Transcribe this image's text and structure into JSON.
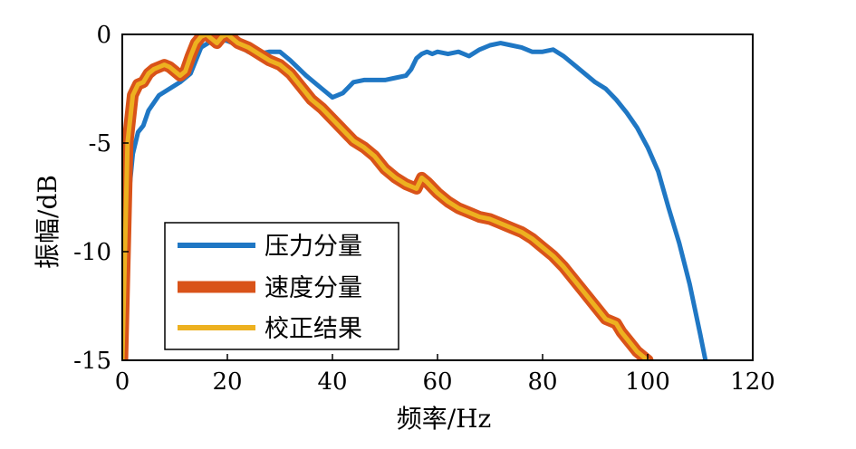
{
  "chart_data": {
    "type": "line",
    "title": "",
    "xlabel": "频率/Hz",
    "ylabel": "振幅/dB",
    "xlim": [
      0,
      120
    ],
    "ylim": [
      -15,
      0
    ],
    "xticks": [
      "0",
      "20",
      "40",
      "60",
      "80",
      "100",
      "120"
    ],
    "yticks": [
      "0",
      "-5",
      "-10",
      "-15"
    ],
    "grid": false,
    "legend_position": "lower-left",
    "series": [
      {
        "name": "压力分量",
        "color": "#1f77c4",
        "x": [
          0,
          1,
          2,
          3,
          4,
          5,
          7,
          9,
          11,
          13,
          15,
          17,
          18,
          20,
          22,
          24,
          26,
          28,
          30,
          32,
          35,
          38,
          40,
          42,
          44,
          46,
          48,
          50,
          52,
          54,
          55,
          56,
          57,
          58,
          59,
          60,
          62,
          64,
          66,
          68,
          70,
          72,
          74,
          76,
          78,
          80,
          82,
          84,
          86,
          88,
          90,
          92,
          94,
          96,
          98,
          100,
          102,
          104,
          106,
          108,
          110,
          111
        ],
        "y": [
          -15,
          -8,
          -5.5,
          -4.5,
          -4.2,
          -3.5,
          -2.8,
          -2.5,
          -2.2,
          -1.8,
          -0.6,
          -0.3,
          -0.2,
          -0.3,
          -0.5,
          -0.8,
          -0.9,
          -0.8,
          -0.8,
          -1.2,
          -1.9,
          -2.5,
          -2.9,
          -2.7,
          -2.2,
          -2.1,
          -2.1,
          -2.1,
          -2.0,
          -1.9,
          -1.6,
          -1.1,
          -0.9,
          -0.8,
          -0.9,
          -0.8,
          -0.9,
          -0.8,
          -1.0,
          -0.7,
          -0.5,
          -0.4,
          -0.5,
          -0.6,
          -0.8,
          -0.8,
          -0.7,
          -1.0,
          -1.4,
          -1.8,
          -2.2,
          -2.5,
          -3.0,
          -3.6,
          -4.3,
          -5.2,
          -6.3,
          -8.0,
          -9.6,
          -11.5,
          -13.8,
          -15
        ]
      },
      {
        "name": "速度分量",
        "color": "#d95319",
        "x": [
          0,
          1,
          2,
          3,
          4,
          5,
          6,
          7,
          8,
          9,
          10,
          11,
          12,
          13,
          14,
          15,
          16,
          17,
          18,
          19,
          20,
          21,
          22,
          24,
          26,
          28,
          30,
          32,
          34,
          36,
          38,
          40,
          42,
          44,
          46,
          48,
          50,
          52,
          54,
          56,
          57,
          58,
          60,
          62,
          64,
          66,
          68,
          70,
          72,
          74,
          76,
          78,
          80,
          82,
          84,
          86,
          88,
          90,
          92,
          94,
          95,
          96,
          98,
          100
        ],
        "y": [
          -15,
          -5,
          -2.8,
          -2.3,
          -2.2,
          -1.8,
          -1.6,
          -1.5,
          -1.4,
          -1.5,
          -1.7,
          -1.9,
          -1.7,
          -1.0,
          -0.4,
          -0.1,
          0,
          -0.2,
          -0.4,
          -0.1,
          0,
          -0.2,
          -0.4,
          -0.6,
          -0.9,
          -1.2,
          -1.4,
          -1.8,
          -2.4,
          -3.0,
          -3.4,
          -3.9,
          -4.4,
          -4.9,
          -5.2,
          -5.6,
          -6.2,
          -6.6,
          -6.9,
          -7.1,
          -6.6,
          -6.8,
          -7.3,
          -7.7,
          -8.0,
          -8.2,
          -8.4,
          -8.5,
          -8.7,
          -8.9,
          -9.1,
          -9.4,
          -9.8,
          -10.2,
          -10.7,
          -11.3,
          -11.9,
          -12.5,
          -13.1,
          -13.3,
          -13.7,
          -14.0,
          -14.6,
          -15
        ]
      },
      {
        "name": "校正结果",
        "color": "#edb120",
        "x": [
          0,
          1,
          2,
          3,
          4,
          5,
          6,
          7,
          8,
          9,
          10,
          11,
          12,
          13,
          14,
          15,
          16,
          17,
          18,
          19,
          20,
          21,
          22,
          24,
          26,
          28,
          30,
          32,
          34,
          36,
          38,
          40,
          42,
          44,
          46,
          48,
          50,
          52,
          54,
          56,
          57,
          58,
          60,
          62,
          64,
          66,
          68,
          70,
          72,
          74,
          76,
          78,
          80,
          82,
          84,
          86,
          88,
          90,
          92,
          94,
          95,
          96,
          98,
          100
        ],
        "y": [
          -15,
          -5,
          -2.8,
          -2.3,
          -2.2,
          -1.8,
          -1.6,
          -1.5,
          -1.4,
          -1.5,
          -1.7,
          -1.9,
          -1.7,
          -1.0,
          -0.4,
          -0.1,
          0,
          -0.2,
          -0.4,
          -0.1,
          0,
          -0.2,
          -0.4,
          -0.6,
          -0.9,
          -1.2,
          -1.4,
          -1.8,
          -2.4,
          -3.0,
          -3.4,
          -3.9,
          -4.4,
          -4.9,
          -5.2,
          -5.6,
          -6.2,
          -6.6,
          -6.9,
          -7.1,
          -6.6,
          -6.8,
          -7.3,
          -7.7,
          -8.0,
          -8.2,
          -8.4,
          -8.5,
          -8.7,
          -8.9,
          -9.1,
          -9.4,
          -9.8,
          -10.2,
          -10.7,
          -11.3,
          -11.9,
          -12.5,
          -13.1,
          -13.3,
          -13.7,
          -14.0,
          -14.6,
          -15
        ]
      }
    ]
  }
}
